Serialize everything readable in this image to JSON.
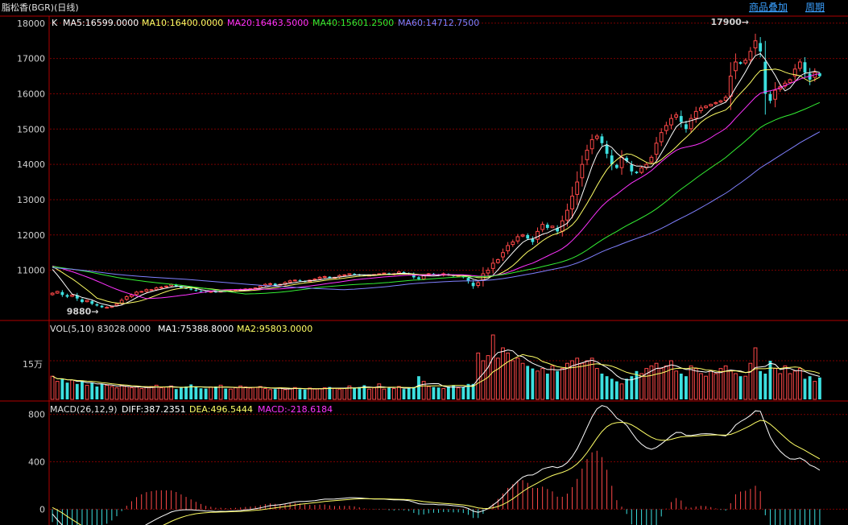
{
  "header": {
    "title": "脂松香(BGR)(日线)",
    "links": [
      "商品叠加",
      "周期"
    ]
  },
  "colors": {
    "up": "#ff4848",
    "down": "#3ce0e0",
    "ma5": "#ffffff",
    "ma10": "#ffff66",
    "ma20": "#ff33ff",
    "ma40": "#33ee33",
    "ma60": "#8080ff",
    "grid": "#7a0000",
    "border": "#b00000"
  },
  "price_panel": {
    "legend": {
      "k": "K",
      "ma5": "MA5:16599.0000",
      "ma10": "MA10:16400.0000",
      "ma20": "MA20:16463.5000",
      "ma40": "MA40:15601.2500",
      "ma60": "MA60:14712.7500"
    },
    "annotations": {
      "high": "17900",
      "low": "9880"
    }
  },
  "volume_panel": {
    "legend": {
      "vol": "VOL(5,10) 83028.0000",
      "ma1": "MA1:75388.8000",
      "ma2": "MA2:95803.0000"
    },
    "tick": "15万"
  },
  "macd_panel": {
    "legend": {
      "macd": "MACD(26,12,9)",
      "diff": "DIFF:387.2351",
      "dea": "DEA:496.5444",
      "val": "MACD:-218.6184"
    }
  },
  "chart_data": [
    {
      "type": "candlestick",
      "ylim": [
        9600,
        18200
      ],
      "yticks": [
        11000,
        12000,
        13000,
        14000,
        15000,
        16000,
        17000,
        18000
      ],
      "high_label": 17900,
      "low_label": 9880,
      "closes": [
        10350,
        10400,
        10300,
        10250,
        10300,
        10200,
        10100,
        10150,
        10050,
        10000,
        9950,
        9950,
        9980,
        10050,
        10150,
        10250,
        10300,
        10380,
        10400,
        10450,
        10450,
        10500,
        10520,
        10550,
        10600,
        10550,
        10500,
        10480,
        10450,
        10420,
        10400,
        10380,
        10400,
        10380,
        10420,
        10400,
        10420,
        10430,
        10450,
        10470,
        10480,
        10500,
        10550,
        10600,
        10620,
        10580,
        10600,
        10650,
        10700,
        10720,
        10700,
        10680,
        10720,
        10750,
        10800,
        10820,
        10780,
        10800,
        10850,
        10870,
        10900,
        10880,
        10860,
        10850,
        10860,
        10880,
        10900,
        10920,
        10880,
        10900,
        10950,
        10920,
        10900,
        10800,
        10750,
        10850,
        10900,
        10880,
        10850,
        10900,
        10860,
        10840,
        10850,
        10800,
        10700,
        10550,
        10650,
        10900,
        11000,
        11200,
        11300,
        11500,
        11700,
        11800,
        11950,
        12000,
        11900,
        11800,
        12100,
        12300,
        12200,
        12250,
        12100,
        12400,
        12700,
        13100,
        13500,
        14000,
        14400,
        14700,
        14800,
        14600,
        14300,
        14000,
        13900,
        14200,
        14100,
        13800,
        13750,
        13900,
        14000,
        14200,
        14600,
        14900,
        15100,
        15300,
        15400,
        15200,
        15000,
        15300,
        15500,
        15600,
        15650,
        15700,
        15750,
        15800,
        15900,
        16500,
        16900,
        16850,
        16950,
        17200,
        17500,
        17200,
        16000,
        15800,
        16100,
        16200,
        16300,
        16400,
        16700,
        16900,
        16600,
        16400,
        16600,
        16500
      ],
      "ma_current": {
        "MA5": 16599.0,
        "MA10": 16400.0,
        "MA20": 16463.5,
        "MA40": 15601.25,
        "MA60": 14712.75
      }
    },
    {
      "type": "bar",
      "name": "VOL(5,10)",
      "ylim": [
        0,
        300000
      ],
      "yticks": [
        150000
      ],
      "current": 83028.0,
      "ma1": 75388.8,
      "ma2": 95803.0,
      "values": [
        90000,
        70000,
        80000,
        65000,
        75000,
        60000,
        70000,
        55000,
        65000,
        50000,
        60000,
        55000,
        50000,
        45000,
        55000,
        50000,
        45000,
        48000,
        42000,
        46000,
        50000,
        55000,
        45000,
        48000,
        52000,
        40000,
        45000,
        50000,
        58000,
        47000,
        43000,
        42000,
        48000,
        50000,
        55000,
        42000,
        40000,
        45000,
        52000,
        48000,
        44000,
        46000,
        50000,
        42000,
        38000,
        40000,
        45000,
        38000,
        42000,
        46000,
        40000,
        38000,
        44000,
        40000,
        42000,
        45000,
        48000,
        43000,
        40000,
        42000,
        52000,
        45000,
        48000,
        55000,
        40000,
        45000,
        60000,
        40000,
        45000,
        42000,
        50000,
        40000,
        44000,
        48000,
        90000,
        70000,
        50000,
        48000,
        46000,
        42000,
        50000,
        55000,
        45000,
        48000,
        60000,
        60000,
        180000,
        150000,
        170000,
        250000,
        160000,
        200000,
        180000,
        150000,
        160000,
        140000,
        130000,
        120000,
        110000,
        120000,
        100000,
        130000,
        110000,
        120000,
        140000,
        150000,
        160000,
        140000,
        150000,
        160000,
        120000,
        100000,
        90000,
        80000,
        70000,
        60000,
        80000,
        90000,
        110000,
        100000,
        120000,
        130000,
        140000,
        120000,
        130000,
        150000,
        110000,
        100000,
        90000,
        130000,
        120000,
        100000,
        90000,
        110000,
        100000,
        120000,
        130000,
        110000,
        100000,
        90000,
        90000,
        140000,
        200000,
        110000,
        100000,
        150000,
        120000,
        100000,
        130000,
        100000,
        110000,
        120000,
        80000,
        90000,
        70000,
        85000
      ]
    },
    {
      "type": "line",
      "name": "MACD(26,12,9)",
      "ylim": [
        -120,
        900
      ],
      "yticks": [
        0,
        400,
        800
      ],
      "current": {
        "DIFF": 387.2351,
        "DEA": 496.5444,
        "MACD": -218.6184
      }
    }
  ]
}
